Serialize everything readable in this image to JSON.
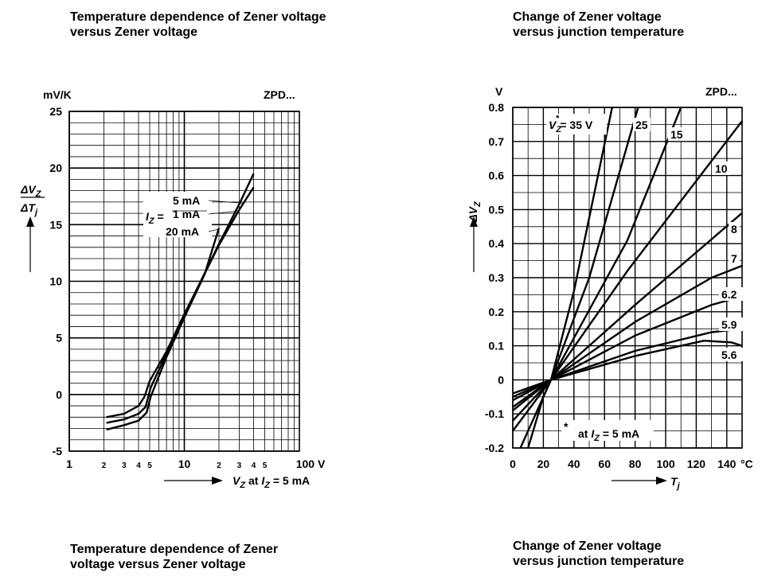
{
  "captions": {
    "left_top": "Temperature dependence of Zener voltage\nversus Zener voltage",
    "right_top": "Change of Zener voltage\nversus junction temperature",
    "left_bottom": "Temperature dependence of Zener\nvoltage versus Zener voltage",
    "right_bottom": "Change of Zener voltage\nversus junction temperature"
  },
  "chart_data": [
    {
      "type": "line",
      "corner_label": "ZPD...",
      "y_unit": "mV/K",
      "ylabel": "ΔVZ/ΔTj",
      "xlabel": "VZ at IZ = 5 mA",
      "x_scale": "log",
      "xlim": [
        1,
        100
      ],
      "ylim": [
        -5,
        25
      ],
      "y_ticks": [
        "25",
        "20",
        "15",
        "10",
        "5",
        "0",
        "-5"
      ],
      "x_ticks": [
        "1",
        "2",
        "3",
        "4",
        "5",
        "10",
        "2",
        "3",
        "4",
        "5",
        "100 V"
      ],
      "legend_prefix": "IZ =",
      "series": [
        {
          "name": "5 mA",
          "points": [
            [
              2.1,
              -2.5
            ],
            [
              3,
              -2.2
            ],
            [
              4,
              -1.7
            ],
            [
              4.6,
              -1.1
            ],
            [
              5.1,
              0.6
            ],
            [
              7,
              3.6
            ],
            [
              10,
              7.0
            ],
            [
              20,
              13.3
            ],
            [
              30,
              16.8
            ],
            [
              40,
              19.5
            ]
          ]
        },
        {
          "name": "1 mA",
          "points": [
            [
              2.1,
              -2.0
            ],
            [
              3,
              -1.7
            ],
            [
              4,
              -1.0
            ],
            [
              4.5,
              -0.2
            ],
            [
              5.0,
              1.2
            ],
            [
              7,
              3.8
            ],
            [
              10,
              7.1
            ],
            [
              20,
              13.2
            ],
            [
              30,
              16.3
            ],
            [
              40,
              18.3
            ]
          ]
        },
        {
          "name": "20 mA",
          "points": [
            [
              2.1,
              -3.1
            ],
            [
              3,
              -2.7
            ],
            [
              4,
              -2.3
            ],
            [
              4.7,
              -1.6
            ],
            [
              5.1,
              -0.2
            ],
            [
              7,
              3.3
            ],
            [
              10,
              6.8
            ],
            [
              15,
              10.6
            ],
            [
              20,
              14.7
            ]
          ]
        }
      ]
    },
    {
      "type": "line",
      "corner_label": "ZPD...",
      "y_unit": "V",
      "ylabel": "ΔVZ",
      "xlabel": "Tj",
      "xlim": [
        0,
        150
      ],
      "ylim": [
        -0.2,
        0.8
      ],
      "x_ticks": [
        "0",
        "20",
        "40",
        "60",
        "80",
        "100",
        "120",
        "140"
      ],
      "x_unit": "°C",
      "y_ticks": [
        "0.8",
        "0.7",
        "0.6",
        "0.5",
        "0.4",
        "0.3",
        "0.2",
        "0.1",
        "0",
        "-0.1",
        "-0.2"
      ],
      "vz_prefix": "VZ",
      "vz_star": "*",
      "vz_suffix": "= 35 V",
      "footnote_star": "*",
      "footnote": "at IZ = 5 mA",
      "series": [
        {
          "name": "35",
          "points": [
            [
              10,
              -0.2
            ],
            [
              20,
              -0.05
            ],
            [
              25,
              0
            ],
            [
              40,
              0.26
            ],
            [
              65,
              0.8
            ]
          ]
        },
        {
          "name": "25",
          "points": [
            [
              5,
              -0.2
            ],
            [
              25,
              0
            ],
            [
              50,
              0.3
            ],
            [
              82,
              0.8
            ]
          ]
        },
        {
          "name": "15",
          "points": [
            [
              0,
              -0.15
            ],
            [
              25,
              0
            ],
            [
              75,
              0.41
            ],
            [
              110,
              0.8
            ]
          ]
        },
        {
          "name": "10",
          "points": [
            [
              0,
              -0.12
            ],
            [
              25,
              0
            ],
            [
              75,
              0.32
            ],
            [
              150,
              0.76
            ]
          ]
        },
        {
          "name": "8",
          "points": [
            [
              0,
              -0.09
            ],
            [
              25,
              0
            ],
            [
              80,
              0.22
            ],
            [
              150,
              0.49
            ]
          ]
        },
        {
          "name": "7",
          "points": [
            [
              0,
              -0.08
            ],
            [
              25,
              0
            ],
            [
              80,
              0.17
            ],
            [
              130,
              0.3
            ],
            [
              150,
              0.335
            ]
          ]
        },
        {
          "name": "6.2",
          "points": [
            [
              0,
              -0.06
            ],
            [
              25,
              0
            ],
            [
              80,
              0.13
            ],
            [
              130,
              0.22
            ],
            [
              150,
              0.245
            ]
          ]
        },
        {
          "name": "5.9",
          "points": [
            [
              0,
              -0.05
            ],
            [
              25,
              0
            ],
            [
              80,
              0.085
            ],
            [
              130,
              0.14
            ],
            [
              150,
              0.15
            ]
          ]
        },
        {
          "name": "5.6",
          "points": [
            [
              0,
              -0.04
            ],
            [
              25,
              0
            ],
            [
              80,
              0.07
            ],
            [
              125,
              0.115
            ],
            [
              143,
              0.11
            ],
            [
              150,
              0.1
            ]
          ]
        }
      ]
    }
  ]
}
